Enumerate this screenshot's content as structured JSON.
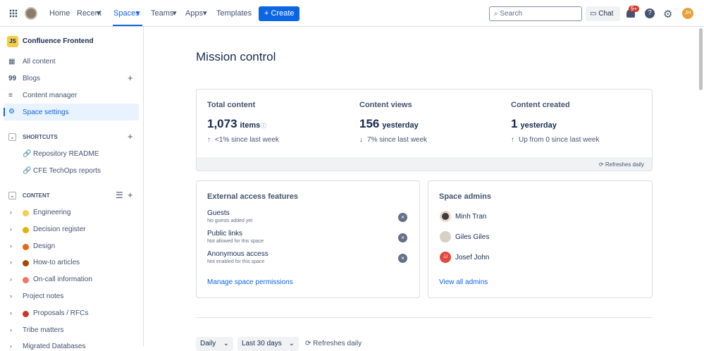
{
  "nav": {
    "items": [
      "Home",
      "Recent",
      "Spaces",
      "Teams",
      "Apps",
      "Templates"
    ],
    "create": "Create",
    "search": "Search",
    "chat": "Chat",
    "badge": "9+",
    "avatar": "JH"
  },
  "sidebar": {
    "space_icon": "JS",
    "space_name": "Confluence Frontend",
    "links": [
      "All content",
      "Blogs",
      "Content manager",
      "Space settings"
    ],
    "shortcuts_title": "SHORTCUTS",
    "shortcuts": [
      "Repository README",
      "CFE TechOps reports"
    ],
    "content_title": "CONTENT",
    "content": [
      "Engineering",
      "Decision register",
      "Design",
      "How-to articles",
      "On-call information",
      "Project notes",
      "Proposals / RFCs",
      "Tribe matters",
      "Migrated Databases"
    ]
  },
  "main": {
    "title": "Mission control",
    "stats": [
      {
        "label": "Total content",
        "value": "1,073",
        "unit": "items",
        "change": "<1% since last week"
      },
      {
        "label": "Content views",
        "value": "156",
        "unit": "yesterday",
        "change": "7% since last week"
      },
      {
        "label": "Content created",
        "value": "1",
        "unit": "yesterday",
        "change": "Up from 0 since last week"
      }
    ],
    "refresh": "Refreshes daily",
    "external": {
      "title": "External access features",
      "items": [
        {
          "name": "Guests",
          "desc": "No guests added yet"
        },
        {
          "name": "Public links",
          "desc": "Not allowed for this space"
        },
        {
          "name": "Anonymous access",
          "desc": "Not enabled for this space"
        }
      ],
      "link": "Manage space permissions"
    },
    "admins": {
      "title": "Space admins",
      "people": [
        "Minh Tran",
        "Giles Giles",
        "Josef John"
      ],
      "initials": "JJ",
      "link": "View all admins"
    },
    "filters": [
      "Daily",
      "Last 30 days"
    ],
    "filter_refresh": "Refreshes daily"
  }
}
